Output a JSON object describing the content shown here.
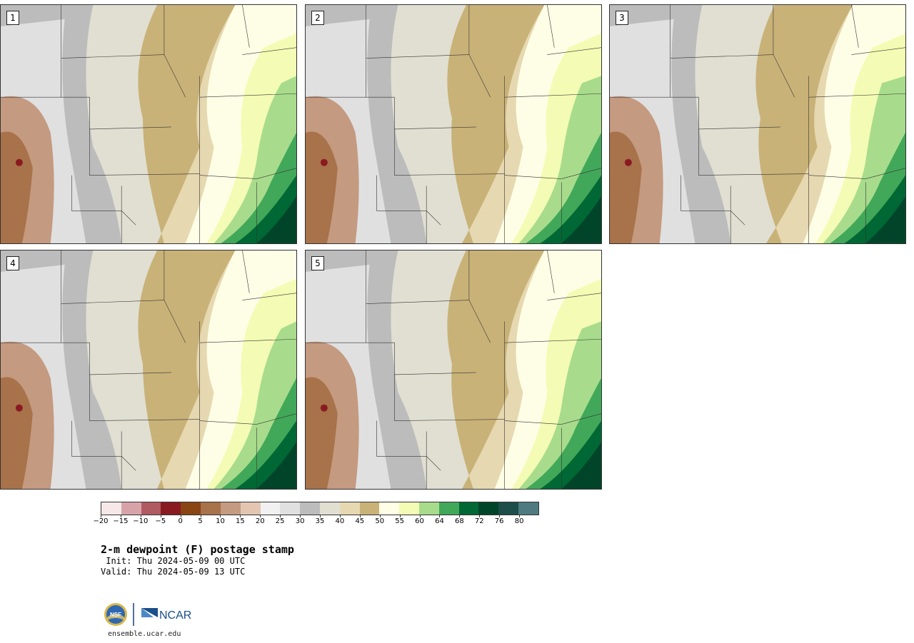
{
  "panels": [
    {
      "label": "1"
    },
    {
      "label": "2"
    },
    {
      "label": "3"
    },
    {
      "label": "4"
    },
    {
      "label": "5"
    }
  ],
  "colorbar": {
    "colors": [
      "#f6e8e8",
      "#d7a3a8",
      "#b05a62",
      "#8a1a22",
      "#8a4514",
      "#a8724a",
      "#c49a80",
      "#e2c6b2",
      "#f1f1f1",
      "#e0e0e0",
      "#bcbcbc",
      "#e0dfd2",
      "#e6d8b0",
      "#c9b278",
      "#fefee6",
      "#f4fbb4",
      "#a8dc8c",
      "#41a859",
      "#006834",
      "#00452a",
      "#1d4e4a",
      "#4e7a80"
    ],
    "tick_labels": [
      "−20",
      "−15",
      "−10",
      "−5",
      "0",
      "5",
      "10",
      "15",
      "20",
      "25",
      "30",
      "35",
      "40",
      "45",
      "50",
      "55",
      "60",
      "64",
      "68",
      "72",
      "76",
      "80"
    ]
  },
  "title": "2-m dewpoint (F) postage stamp",
  "init": " Init: Thu 2024-05-09 00 UTC",
  "valid": "Valid: Thu 2024-05-09 13 UTC",
  "logos": {
    "nsf": "NSF",
    "ncar": "NCAR"
  },
  "url": "ensemble.ucar.edu"
}
